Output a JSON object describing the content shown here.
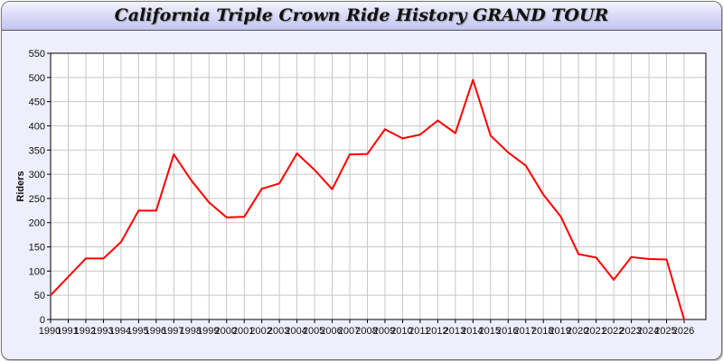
{
  "chart_data": {
    "type": "line",
    "title": "California Triple Crown Ride History GRAND TOUR",
    "xlabel": "",
    "ylabel": "Riders",
    "ylim": [
      0,
      550
    ],
    "yticks": [
      0,
      50,
      100,
      150,
      200,
      250,
      300,
      350,
      400,
      450,
      500,
      550
    ],
    "grid": true,
    "line_color": "#ff0000",
    "x": [
      1990,
      1991,
      1992,
      1993,
      1994,
      1995,
      1996,
      1997,
      1998,
      1999,
      2000,
      2001,
      2002,
      2003,
      2004,
      2005,
      2006,
      2007,
      2008,
      2009,
      2010,
      2011,
      2012,
      2013,
      2014,
      2015,
      2016,
      2017,
      2018,
      2019,
      2020,
      2021,
      2022,
      2023,
      2024,
      2025,
      2026
    ],
    "series": [
      {
        "values": [
          50,
          88,
          126,
          126,
          160,
          225,
          225,
          341,
          287,
          242,
          211,
          212,
          270,
          281,
          343,
          309,
          269,
          341,
          342,
          393,
          374,
          382,
          411,
          385,
          495,
          380,
          345,
          318,
          258,
          212,
          135,
          128,
          82,
          129,
          125,
          124,
          0
        ]
      }
    ]
  }
}
